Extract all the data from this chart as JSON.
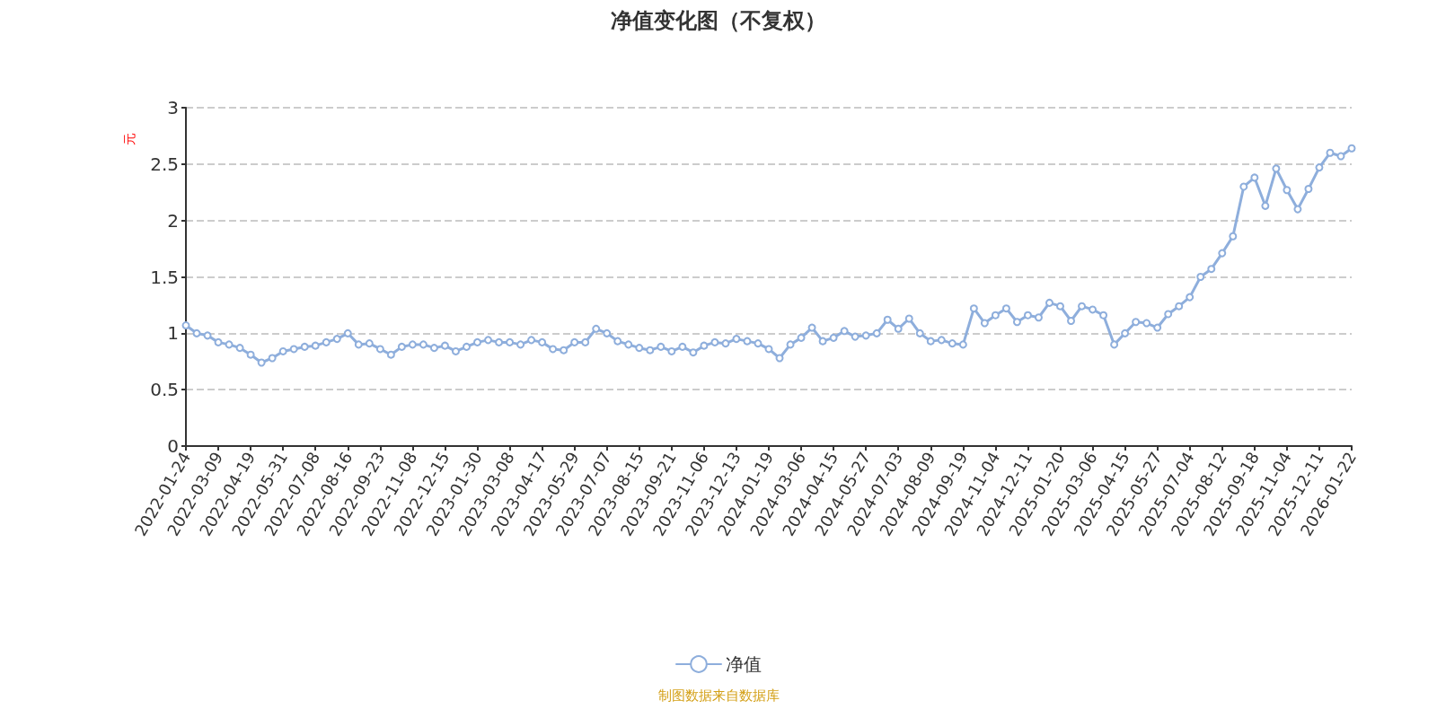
{
  "chart_data": {
    "type": "line",
    "title": "净值变化图（不复权）",
    "ylabel": "元",
    "categories": [
      "2022-01-24",
      null,
      null,
      "2022-03-09",
      null,
      null,
      "2022-04-19",
      null,
      null,
      "2022-05-31",
      null,
      null,
      "2022-07-08",
      null,
      null,
      "2022-08-16",
      null,
      null,
      "2022-09-23",
      null,
      null,
      "2022-11-08",
      null,
      null,
      "2022-12-15",
      null,
      null,
      "2023-01-30",
      null,
      null,
      "2023-03-08",
      null,
      null,
      "2023-04-17",
      null,
      null,
      "2023-05-29",
      null,
      null,
      "2023-07-07",
      null,
      null,
      "2023-08-15",
      null,
      null,
      "2023-09-21",
      null,
      null,
      "2023-11-06",
      null,
      null,
      "2023-12-13",
      null,
      null,
      "2024-01-19",
      null,
      null,
      "2024-03-06",
      null,
      null,
      "2024-04-15",
      null,
      null,
      "2024-05-27",
      null,
      null,
      "2024-07-03",
      null,
      null,
      "2024-08-09",
      null,
      null,
      "2024-09-19",
      null,
      null,
      "2024-11-04",
      null,
      null,
      "2024-12-11",
      null,
      null,
      "2025-01-20",
      null,
      null,
      "2025-03-06",
      null,
      null,
      "2025-04-15",
      null,
      null,
      "2025-05-27",
      null,
      null,
      "2025-07-04",
      null,
      null,
      "2025-08-12",
      null,
      null,
      "2025-09-18",
      null,
      null,
      "2025-11-04",
      null,
      null,
      "2025-12-11",
      null,
      null,
      "2026-01-22"
    ],
    "series": [
      {
        "name": "净值",
        "color": "#8eaedc",
        "values": [
          1.07,
          1.0,
          0.98,
          0.92,
          0.9,
          0.87,
          0.81,
          0.74,
          0.78,
          0.84,
          0.86,
          0.88,
          0.89,
          0.92,
          0.95,
          1.0,
          0.9,
          0.91,
          0.86,
          0.81,
          0.88,
          0.9,
          0.9,
          0.87,
          0.89,
          0.84,
          0.88,
          0.92,
          0.94,
          0.92,
          0.92,
          0.9,
          0.94,
          0.92,
          0.86,
          0.85,
          0.92,
          0.92,
          1.04,
          1.0,
          0.93,
          0.9,
          0.87,
          0.85,
          0.88,
          0.84,
          0.88,
          0.83,
          0.89,
          0.92,
          0.91,
          0.95,
          0.93,
          0.91,
          0.86,
          0.78,
          0.9,
          0.96,
          1.05,
          0.93,
          0.96,
          1.02,
          0.97,
          0.98,
          1.0,
          1.12,
          1.04,
          1.13,
          1.0,
          0.93,
          0.94,
          0.91,
          0.9,
          1.22,
          1.09,
          1.16,
          1.22,
          1.1,
          1.16,
          1.14,
          1.27,
          1.24,
          1.11,
          1.24,
          1.21,
          1.16,
          0.9,
          1.0,
          1.1,
          1.09,
          1.05,
          1.17,
          1.24,
          1.32,
          1.5,
          1.57,
          1.71,
          1.86,
          2.3,
          2.38,
          2.13,
          2.46,
          2.27,
          2.1,
          2.28,
          2.47,
          2.6,
          2.57,
          2.64
        ]
      }
    ],
    "ylim": [
      0,
      3
    ],
    "yticks": [
      0,
      0.5,
      1,
      1.5,
      2,
      2.5,
      3
    ],
    "grid": "y",
    "legend": "bottom",
    "marker": "circle",
    "line_style": "solid",
    "annotations": [
      "制图数据来自数据库"
    ]
  }
}
